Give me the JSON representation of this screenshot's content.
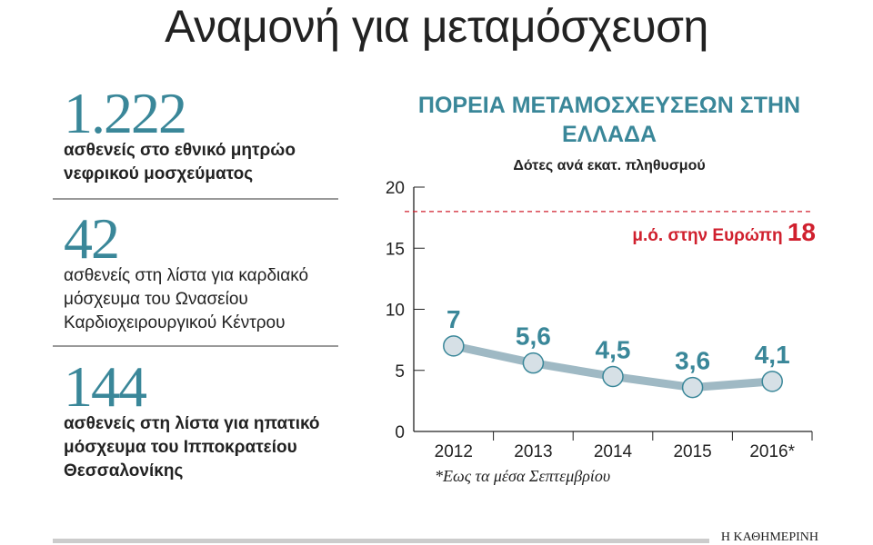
{
  "title": "Αναμονή για μεταμόσχευση",
  "stats": [
    {
      "number": "1.222",
      "text": "ασθενείς στο εθνικό μητρώο νεφρικού μοσχεύματος"
    },
    {
      "number": "42",
      "text": "ασθενείς στη λίστα για καρδιακό μόσχευμα του Ωνασείου Καρδιοχειρουργικού Κέντρου"
    },
    {
      "number": "144",
      "text": "ασθενείς στη λίστα για ηπατικό μόσχευμα του Ιπποκρατείου Θεσσαλονίκης"
    }
  ],
  "chart_data": {
    "type": "line",
    "title": "ΠΟΡΕΙΑ ΜΕΤΑΜΟΣΧΕΥΣΕΩΝ ΣΤΗΝ ΕΛΛΑΔΑ",
    "subtitle": "Δότες ανά εκατ. πληθυσμού",
    "categories": [
      "2012",
      "2013",
      "2014",
      "2015",
      "2016*"
    ],
    "values": [
      7,
      5.6,
      4.5,
      3.6,
      4.1
    ],
    "data_labels": [
      "7",
      "5,6",
      "4,5",
      "3,6",
      "4,1"
    ],
    "ylim": [
      0,
      20
    ],
    "yticks": [
      "0",
      "5",
      "10",
      "15",
      "20"
    ],
    "reference_line": {
      "value": 18,
      "label": "μ.ό. στην Ευρώπη",
      "value_label": "18",
      "color": "#d0202e"
    },
    "line_color": "#9fb9c4",
    "accent": "#3a8799",
    "footnote": "*Εως τα μέσα Σεπτεμβρίου",
    "grid": false
  },
  "footer": {
    "logo": "Η ΚΑΘΗΜΕΡΙΝΗ"
  }
}
